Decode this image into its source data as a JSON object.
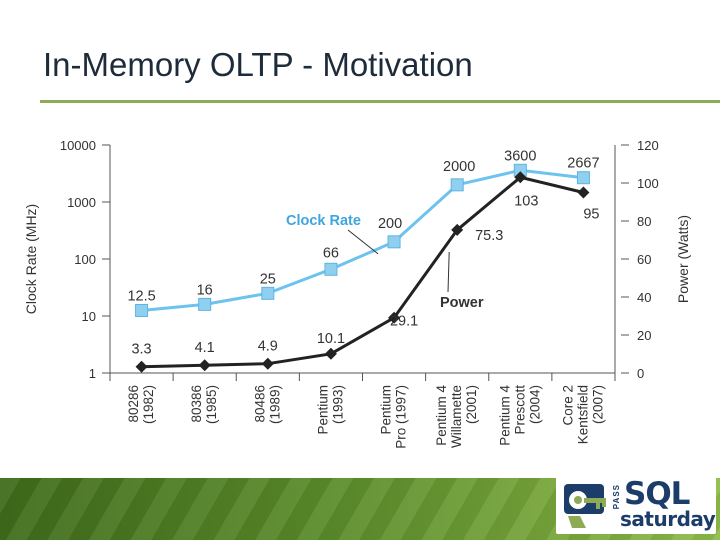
{
  "slide": {
    "title": "In-Memory OLTP - Motivation",
    "logo": {
      "pass": "PASS",
      "sql": "SQL",
      "saturday": "saturday"
    }
  },
  "colors": {
    "clock_rate": "#6cc3ee",
    "clock_rate_marker": "#8fd0f0",
    "power": "#222222",
    "title_rule": "#8cab54",
    "label_blue": "#3fa5dd"
  },
  "chart_data": {
    "type": "line",
    "title": "",
    "categories": [
      [
        "80286",
        "(1982)"
      ],
      [
        "80386",
        "(1985)"
      ],
      [
        "80486",
        "(1989)"
      ],
      [
        "Pentium",
        "(1993)"
      ],
      [
        "Pentium",
        "Pro (1997)"
      ],
      [
        "Pentium 4",
        "Willamette",
        "(2001)"
      ],
      [
        "Pentium 4",
        "Prescott",
        "(2004)"
      ],
      [
        "Core 2",
        "Kentsfield",
        "(2007)"
      ]
    ],
    "left_axis": {
      "label": "Clock Rate (MHz)",
      "scale": "log",
      "range": [
        1,
        10000
      ],
      "ticks": [
        "10000",
        "1000",
        "100",
        "10",
        "1"
      ]
    },
    "right_axis": {
      "label": "Power (Watts)",
      "scale": "linear",
      "range": [
        0,
        120
      ],
      "ticks": [
        "120",
        "100",
        "80",
        "60",
        "40",
        "20",
        "0"
      ]
    },
    "series": [
      {
        "name": "Clock Rate",
        "axis": "left",
        "values": [
          12.5,
          16,
          25,
          66,
          200,
          2000,
          3600,
          2667
        ],
        "labels": [
          "12.5",
          "16",
          "25",
          "66",
          "200",
          "2000",
          "3600",
          "2667"
        ],
        "marker": "square"
      },
      {
        "name": "Power",
        "axis": "right",
        "values": [
          3.3,
          4.1,
          4.9,
          10.1,
          29.1,
          75.3,
          103,
          95
        ],
        "labels": [
          "3.3",
          "4.1",
          "4.9",
          "10.1",
          "29.1",
          "75.3",
          "103",
          "95"
        ],
        "marker": "diamond"
      }
    ],
    "grid": false,
    "legend": "inline labels"
  }
}
